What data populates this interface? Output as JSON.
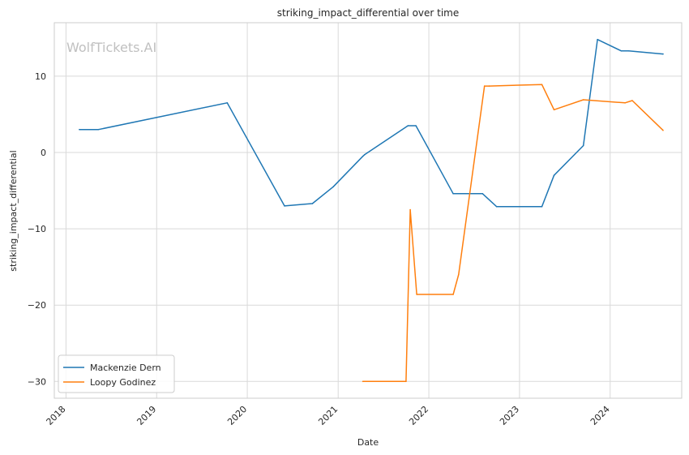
{
  "chart_data": {
    "type": "line",
    "title": "striking_impact_differential over time",
    "xlabel": "Date",
    "ylabel": "striking_impact_differential",
    "watermark": "WolfTickets.AI",
    "xlim": [
      "2017-11-15",
      "2024-10-15"
    ],
    "ylim": [
      -32.2,
      17.0
    ],
    "x_ticks": [
      "2018",
      "2019",
      "2020",
      "2021",
      "2022",
      "2023",
      "2024"
    ],
    "y_ticks": [
      -30,
      -20,
      -10,
      0,
      10
    ],
    "grid": true,
    "legend_position": "lower-left",
    "series": [
      {
        "name": "Mackenzie Dern",
        "color": "#1f77b4",
        "x": [
          "2018-02-24",
          "2018-05-12",
          "2019-10-12",
          "2020-05-30",
          "2020-09-19",
          "2020-12-12",
          "2021-04-10",
          "2021-04-17",
          "2021-10-09",
          "2021-11-10",
          "2022-04-09",
          "2022-08-05",
          "2022-10-01",
          "2023-04-01",
          "2023-05-20",
          "2023-09-15",
          "2023-11-11",
          "2024-02-15",
          "2024-03-16",
          "2024-08-01"
        ],
        "values": [
          3.0,
          3.0,
          6.5,
          -7.0,
          -6.7,
          -4.5,
          -0.5,
          -0.3,
          3.5,
          3.5,
          -5.4,
          -5.4,
          -7.1,
          -7.1,
          -3.0,
          0.9,
          14.8,
          13.3,
          13.3,
          12.9
        ]
      },
      {
        "name": "Loopy Godinez",
        "color": "#ff7f0e",
        "x": [
          "2021-04-10",
          "2021-10-01",
          "2021-10-18",
          "2021-11-13",
          "2022-04-09",
          "2022-05-01",
          "2022-08-13",
          "2022-09-01",
          "2023-04-01",
          "2023-05-20",
          "2023-09-15",
          "2024-03-01",
          "2024-03-30",
          "2024-08-01"
        ],
        "values": [
          -30.0,
          -30.0,
          -7.5,
          -18.6,
          -18.6,
          -16.0,
          8.7,
          8.7,
          8.9,
          5.6,
          6.9,
          6.5,
          6.8,
          2.9
        ]
      }
    ]
  }
}
